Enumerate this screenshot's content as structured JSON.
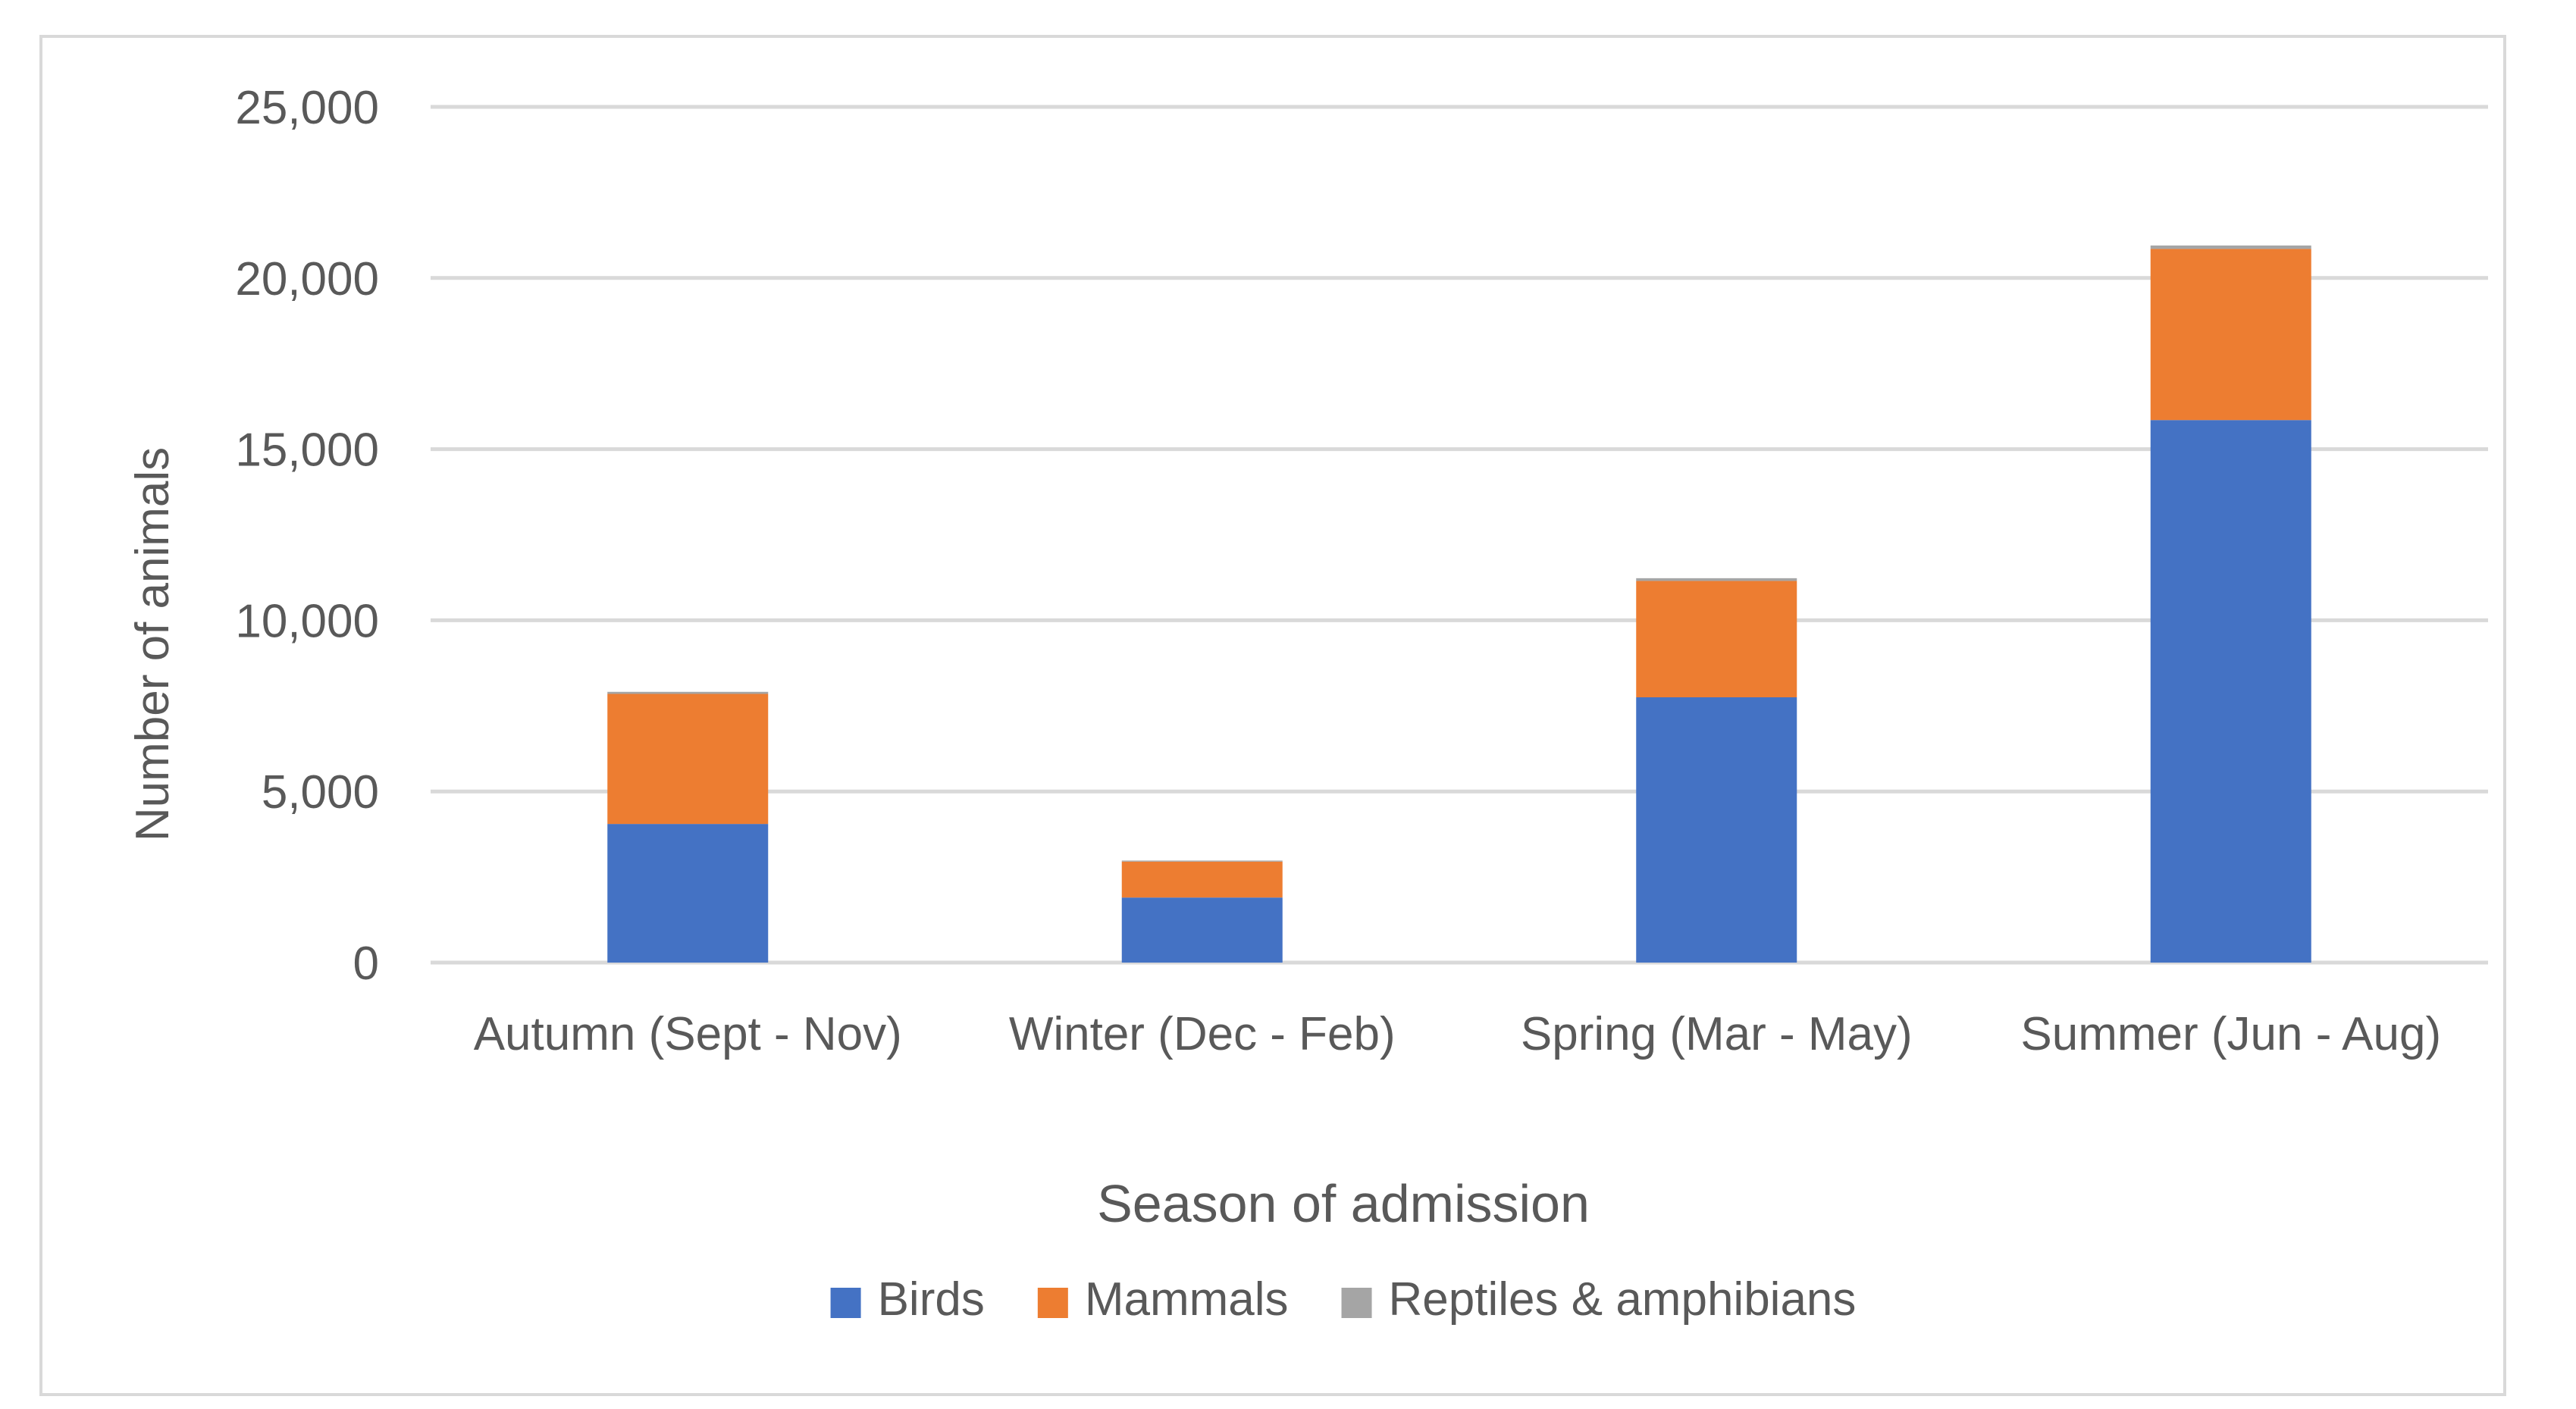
{
  "chart_data": {
    "type": "bar",
    "stacked": true,
    "title": "",
    "xlabel": "Season of admission",
    "ylabel": "Number of animals",
    "ylim": [
      0,
      25000
    ],
    "yticks": [
      0,
      5000,
      10000,
      15000,
      20000,
      25000
    ],
    "ytick_labels": [
      "0",
      "5,000",
      "10,000",
      "15,000",
      "20,000",
      "25,000"
    ],
    "categories": [
      "Autumn (Sept - Nov)",
      "Winter (Dec - Feb)",
      "Spring (Mar - May)",
      "Summer (Jun - Aug)"
    ],
    "series": [
      {
        "name": "Birds",
        "color": "#4472c4",
        "values": [
          4050,
          1900,
          7750,
          15850
        ]
      },
      {
        "name": "Mammals",
        "color": "#ed7d31",
        "values": [
          3800,
          1050,
          3400,
          5000
        ]
      },
      {
        "name": "Reptiles & amphibians",
        "color": "#a5a5a5",
        "values": [
          60,
          30,
          80,
          100
        ]
      }
    ],
    "grid": true,
    "legend_position": "bottom",
    "colors": {
      "grid": "#d9d9d9",
      "text": "#595959",
      "frame": "#d9d9d9"
    }
  }
}
